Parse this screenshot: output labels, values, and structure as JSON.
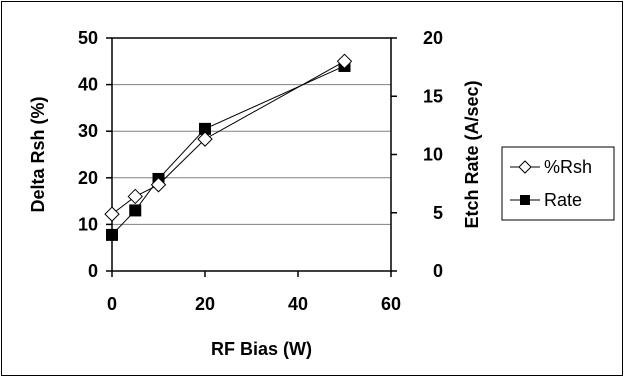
{
  "chart_data": {
    "type": "line",
    "xlabel": "RF Bias (W)",
    "ylabel": "Delta Rsh (%)",
    "y2label": "Etch Rate (A/sec)",
    "xlim": [
      0,
      60
    ],
    "ylim": [
      0,
      50
    ],
    "y2lim": [
      0,
      20
    ],
    "x_ticks": [
      "0",
      "20",
      "40",
      "60"
    ],
    "y_ticks": [
      "0",
      "10",
      "20",
      "30",
      "40",
      "50"
    ],
    "y2_ticks": [
      "0",
      "5",
      "10",
      "15",
      "20"
    ],
    "grid": "horizontal",
    "legend_position": "right",
    "series": [
      {
        "name": "%Rsh",
        "axis": "left",
        "marker": "open-diamond",
        "x": [
          0,
          5,
          10,
          20,
          50
        ],
        "y": [
          12.2,
          16,
          18.5,
          28.3,
          45
        ]
      },
      {
        "name": "Rate",
        "axis": "right",
        "marker": "filled-square",
        "x": [
          0,
          5,
          10,
          20,
          50
        ],
        "y": [
          3.1,
          5.2,
          7.9,
          12.2,
          17.6
        ]
      }
    ]
  }
}
